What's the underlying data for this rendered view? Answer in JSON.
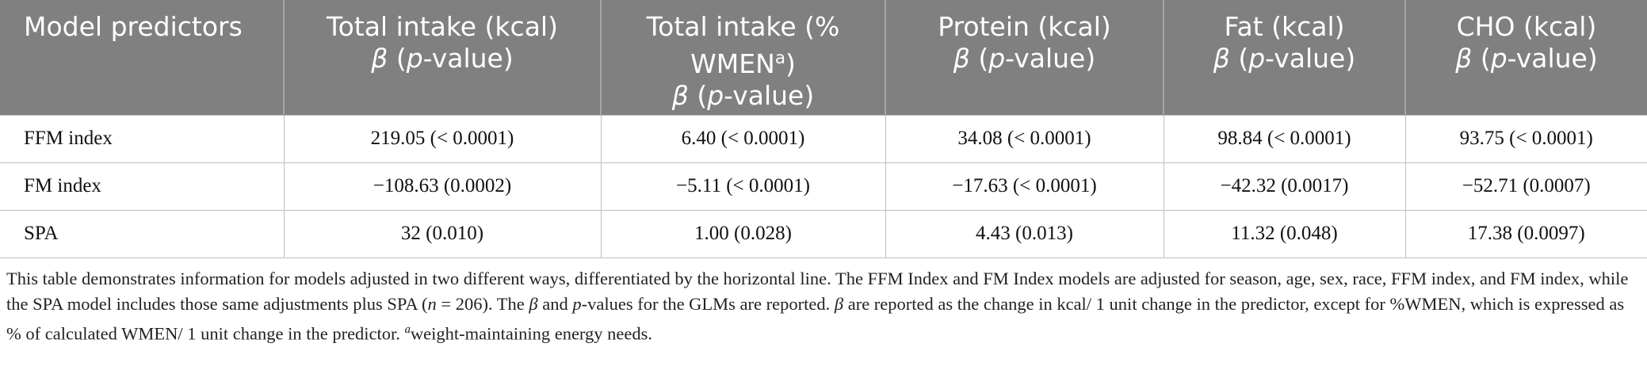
{
  "table": {
    "header": [
      [
        "Model predictors"
      ],
      [
        "Total intake (kcal)",
        "β",
        "(",
        "p",
        "-value)"
      ],
      [
        "Total intake (%",
        "WMEN",
        "a",
        ")",
        "β",
        "(",
        "p",
        "-value)"
      ],
      [
        "Protein (kcal)",
        "β",
        "(",
        "p",
        "-value)"
      ],
      [
        "Fat (kcal)",
        "β",
        "(",
        "p",
        "-value)"
      ],
      [
        "CHO (kcal)",
        "β",
        "(",
        "p",
        "-value)"
      ]
    ],
    "rows": [
      [
        "FFM index",
        "219.05 (< 0.0001)",
        "6.40 (< 0.0001)",
        "34.08 (< 0.0001)",
        "98.84 (< 0.0001)",
        "93.75 (< 0.0001)"
      ],
      [
        "FM index",
        "−108.63 (0.0002)",
        "−5.11 (< 0.0001)",
        "−17.63 (< 0.0001)",
        "−42.32 (0.0017)",
        "−52.71 (0.0007)"
      ],
      [
        "SPA",
        "32 (0.010)",
        "1.00 (0.028)",
        "4.43 (0.013)",
        "11.32 (0.048)",
        "17.38 (0.0097)"
      ]
    ]
  },
  "caption": [
    "This table demonstrates information for models adjusted in two different ways, differentiated by the horizontal line. The FFM Index and FM Index models are adjusted for season, age, sex, race, FFM index, and FM index, while the SPA model includes those same adjustments plus SPA (",
    "n",
    " = 206). The ",
    "β",
    " and ",
    "p",
    "-values for the GLMs are reported. ",
    "β",
    " are reported as the change in kcal/ 1 unit change in the predictor, except for %WMEN, which is expressed as % of calculated WMEN/ 1 unit change in the predictor. ",
    "a",
    "weight-maintaining energy needs."
  ]
}
